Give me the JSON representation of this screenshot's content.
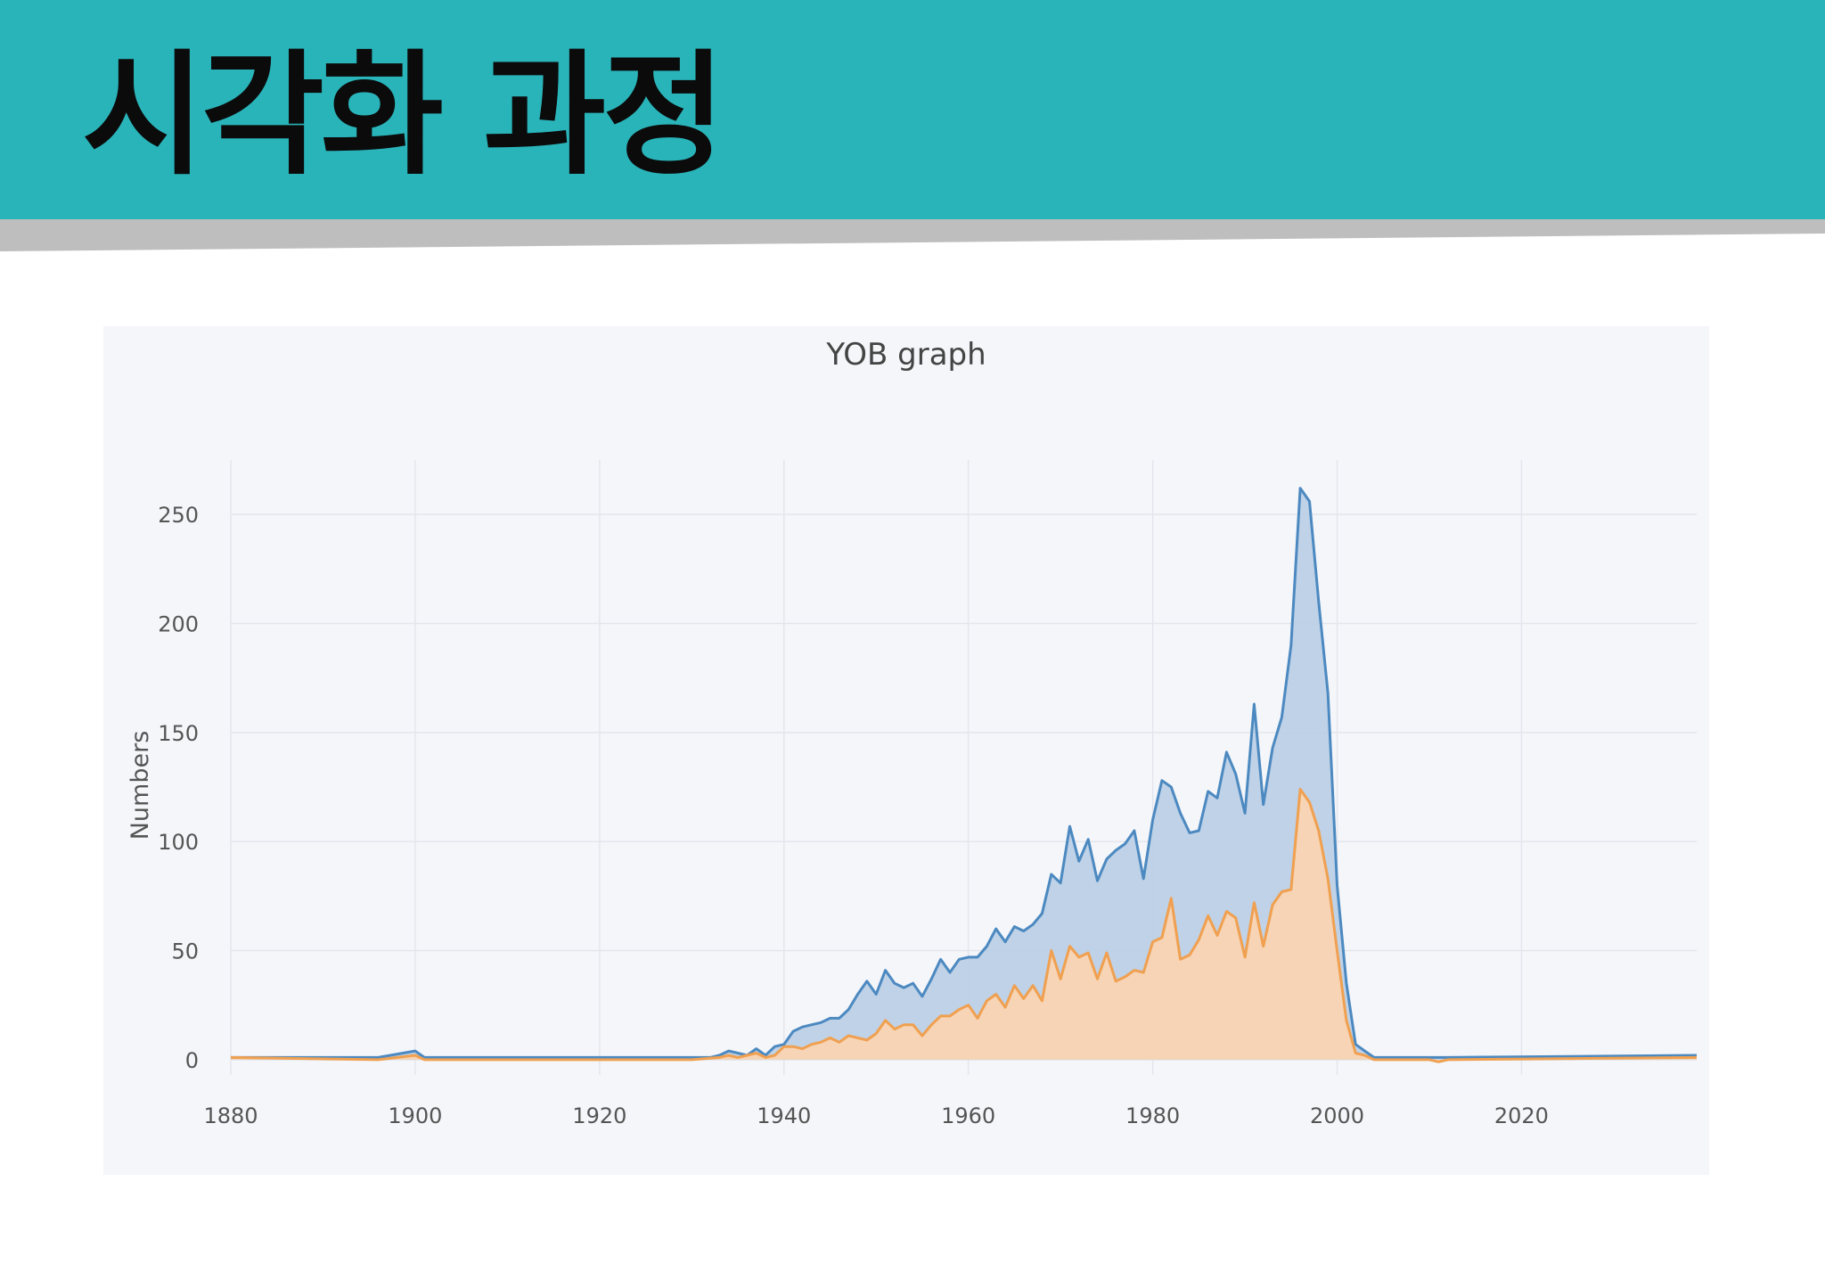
{
  "slide": {
    "title": "시각화 과정"
  },
  "colors": {
    "header_bg": "#29b4ba",
    "shadow_band": "#bebebe",
    "panel_bg": "#f4f6fa",
    "grid": "#e3e6ec",
    "series_blue_line": "#4c89c0",
    "series_blue_fill": "#bcd0e6",
    "series_orange_line": "#f0a050",
    "series_orange_fill": "#f9d4b2"
  },
  "chart_data": {
    "type": "area",
    "title": "YOB graph",
    "xlabel": "",
    "ylabel": "Numbers",
    "xlim": [
      1880,
      2039
    ],
    "ylim": [
      -7,
      275
    ],
    "x_ticks": [
      1880,
      1900,
      1920,
      1940,
      1960,
      1980,
      2000,
      2020
    ],
    "y_ticks": [
      0,
      50,
      100,
      150,
      200,
      250
    ],
    "grid": true,
    "legend": "none",
    "series": [
      {
        "color": "#4c89c0",
        "fill": "#bcd0e6",
        "points": [
          [
            1880,
            1
          ],
          [
            1896,
            1
          ],
          [
            1900,
            4
          ],
          [
            1901,
            1
          ],
          [
            1931,
            1
          ],
          [
            1932,
            1
          ],
          [
            1933,
            2
          ],
          [
            1934,
            4
          ],
          [
            1935,
            3
          ],
          [
            1936,
            2
          ],
          [
            1937,
            5
          ],
          [
            1938,
            2
          ],
          [
            1939,
            6
          ],
          [
            1940,
            7
          ],
          [
            1941,
            13
          ],
          [
            1942,
            15
          ],
          [
            1943,
            16
          ],
          [
            1944,
            17
          ],
          [
            1945,
            19
          ],
          [
            1946,
            19
          ],
          [
            1947,
            23
          ],
          [
            1948,
            30
          ],
          [
            1949,
            36
          ],
          [
            1950,
            30
          ],
          [
            1951,
            41
          ],
          [
            1952,
            35
          ],
          [
            1953,
            33
          ],
          [
            1954,
            35
          ],
          [
            1955,
            29
          ],
          [
            1956,
            37
          ],
          [
            1957,
            46
          ],
          [
            1958,
            40
          ],
          [
            1959,
            46
          ],
          [
            1960,
            47
          ],
          [
            1961,
            47
          ],
          [
            1962,
            52
          ],
          [
            1963,
            60
          ],
          [
            1964,
            54
          ],
          [
            1965,
            61
          ],
          [
            1966,
            59
          ],
          [
            1967,
            62
          ],
          [
            1968,
            67
          ],
          [
            1969,
            85
          ],
          [
            1970,
            81
          ],
          [
            1971,
            107
          ],
          [
            1972,
            91
          ],
          [
            1973,
            101
          ],
          [
            1974,
            82
          ],
          [
            1975,
            92
          ],
          [
            1976,
            96
          ],
          [
            1977,
            99
          ],
          [
            1978,
            105
          ],
          [
            1979,
            83
          ],
          [
            1980,
            110
          ],
          [
            1981,
            128
          ],
          [
            1982,
            125
          ],
          [
            1983,
            113
          ],
          [
            1984,
            104
          ],
          [
            1985,
            105
          ],
          [
            1986,
            123
          ],
          [
            1987,
            120
          ],
          [
            1988,
            141
          ],
          [
            1989,
            131
          ],
          [
            1990,
            113
          ],
          [
            1991,
            163
          ],
          [
            1992,
            117
          ],
          [
            1993,
            143
          ],
          [
            1994,
            157
          ],
          [
            1995,
            190
          ],
          [
            1996,
            262
          ],
          [
            1997,
            256
          ],
          [
            1998,
            210
          ],
          [
            1999,
            168
          ],
          [
            2000,
            80
          ],
          [
            2001,
            35
          ],
          [
            2002,
            7
          ],
          [
            2003,
            4
          ],
          [
            2004,
            1
          ],
          [
            2012,
            1
          ],
          [
            2039,
            2
          ]
        ]
      },
      {
        "color": "#f0a050",
        "fill": "#f9d4b2",
        "points": [
          [
            1880,
            1
          ],
          [
            1896,
            0
          ],
          [
            1900,
            2
          ],
          [
            1901,
            0
          ],
          [
            1930,
            0
          ],
          [
            1933,
            1
          ],
          [
            1934,
            2
          ],
          [
            1935,
            1
          ],
          [
            1936,
            2
          ],
          [
            1937,
            3
          ],
          [
            1938,
            1
          ],
          [
            1939,
            2
          ],
          [
            1940,
            6
          ],
          [
            1941,
            6
          ],
          [
            1942,
            5
          ],
          [
            1943,
            7
          ],
          [
            1944,
            8
          ],
          [
            1945,
            10
          ],
          [
            1946,
            8
          ],
          [
            1947,
            11
          ],
          [
            1948,
            10
          ],
          [
            1949,
            9
          ],
          [
            1950,
            12
          ],
          [
            1951,
            18
          ],
          [
            1952,
            14
          ],
          [
            1953,
            16
          ],
          [
            1954,
            16
          ],
          [
            1955,
            11
          ],
          [
            1956,
            16
          ],
          [
            1957,
            20
          ],
          [
            1958,
            20
          ],
          [
            1959,
            23
          ],
          [
            1960,
            25
          ],
          [
            1961,
            19
          ],
          [
            1962,
            27
          ],
          [
            1963,
            30
          ],
          [
            1964,
            24
          ],
          [
            1965,
            34
          ],
          [
            1966,
            28
          ],
          [
            1967,
            34
          ],
          [
            1968,
            27
          ],
          [
            1969,
            50
          ],
          [
            1970,
            37
          ],
          [
            1971,
            52
          ],
          [
            1972,
            47
          ],
          [
            1973,
            49
          ],
          [
            1974,
            37
          ],
          [
            1975,
            49
          ],
          [
            1976,
            36
          ],
          [
            1977,
            38
          ],
          [
            1978,
            41
          ],
          [
            1979,
            40
          ],
          [
            1980,
            54
          ],
          [
            1981,
            56
          ],
          [
            1982,
            74
          ],
          [
            1983,
            46
          ],
          [
            1984,
            48
          ],
          [
            1985,
            55
          ],
          [
            1986,
            66
          ],
          [
            1987,
            57
          ],
          [
            1988,
            68
          ],
          [
            1989,
            65
          ],
          [
            1990,
            47
          ],
          [
            1991,
            72
          ],
          [
            1992,
            52
          ],
          [
            1993,
            71
          ],
          [
            1994,
            77
          ],
          [
            1995,
            78
          ],
          [
            1996,
            124
          ],
          [
            1997,
            118
          ],
          [
            1998,
            105
          ],
          [
            1999,
            83
          ],
          [
            2000,
            50
          ],
          [
            2001,
            18
          ],
          [
            2002,
            3
          ],
          [
            2003,
            2
          ],
          [
            2004,
            0
          ],
          [
            2010,
            0
          ],
          [
            2011,
            -1
          ],
          [
            2012,
            0
          ],
          [
            2039,
            1
          ]
        ]
      }
    ]
  }
}
